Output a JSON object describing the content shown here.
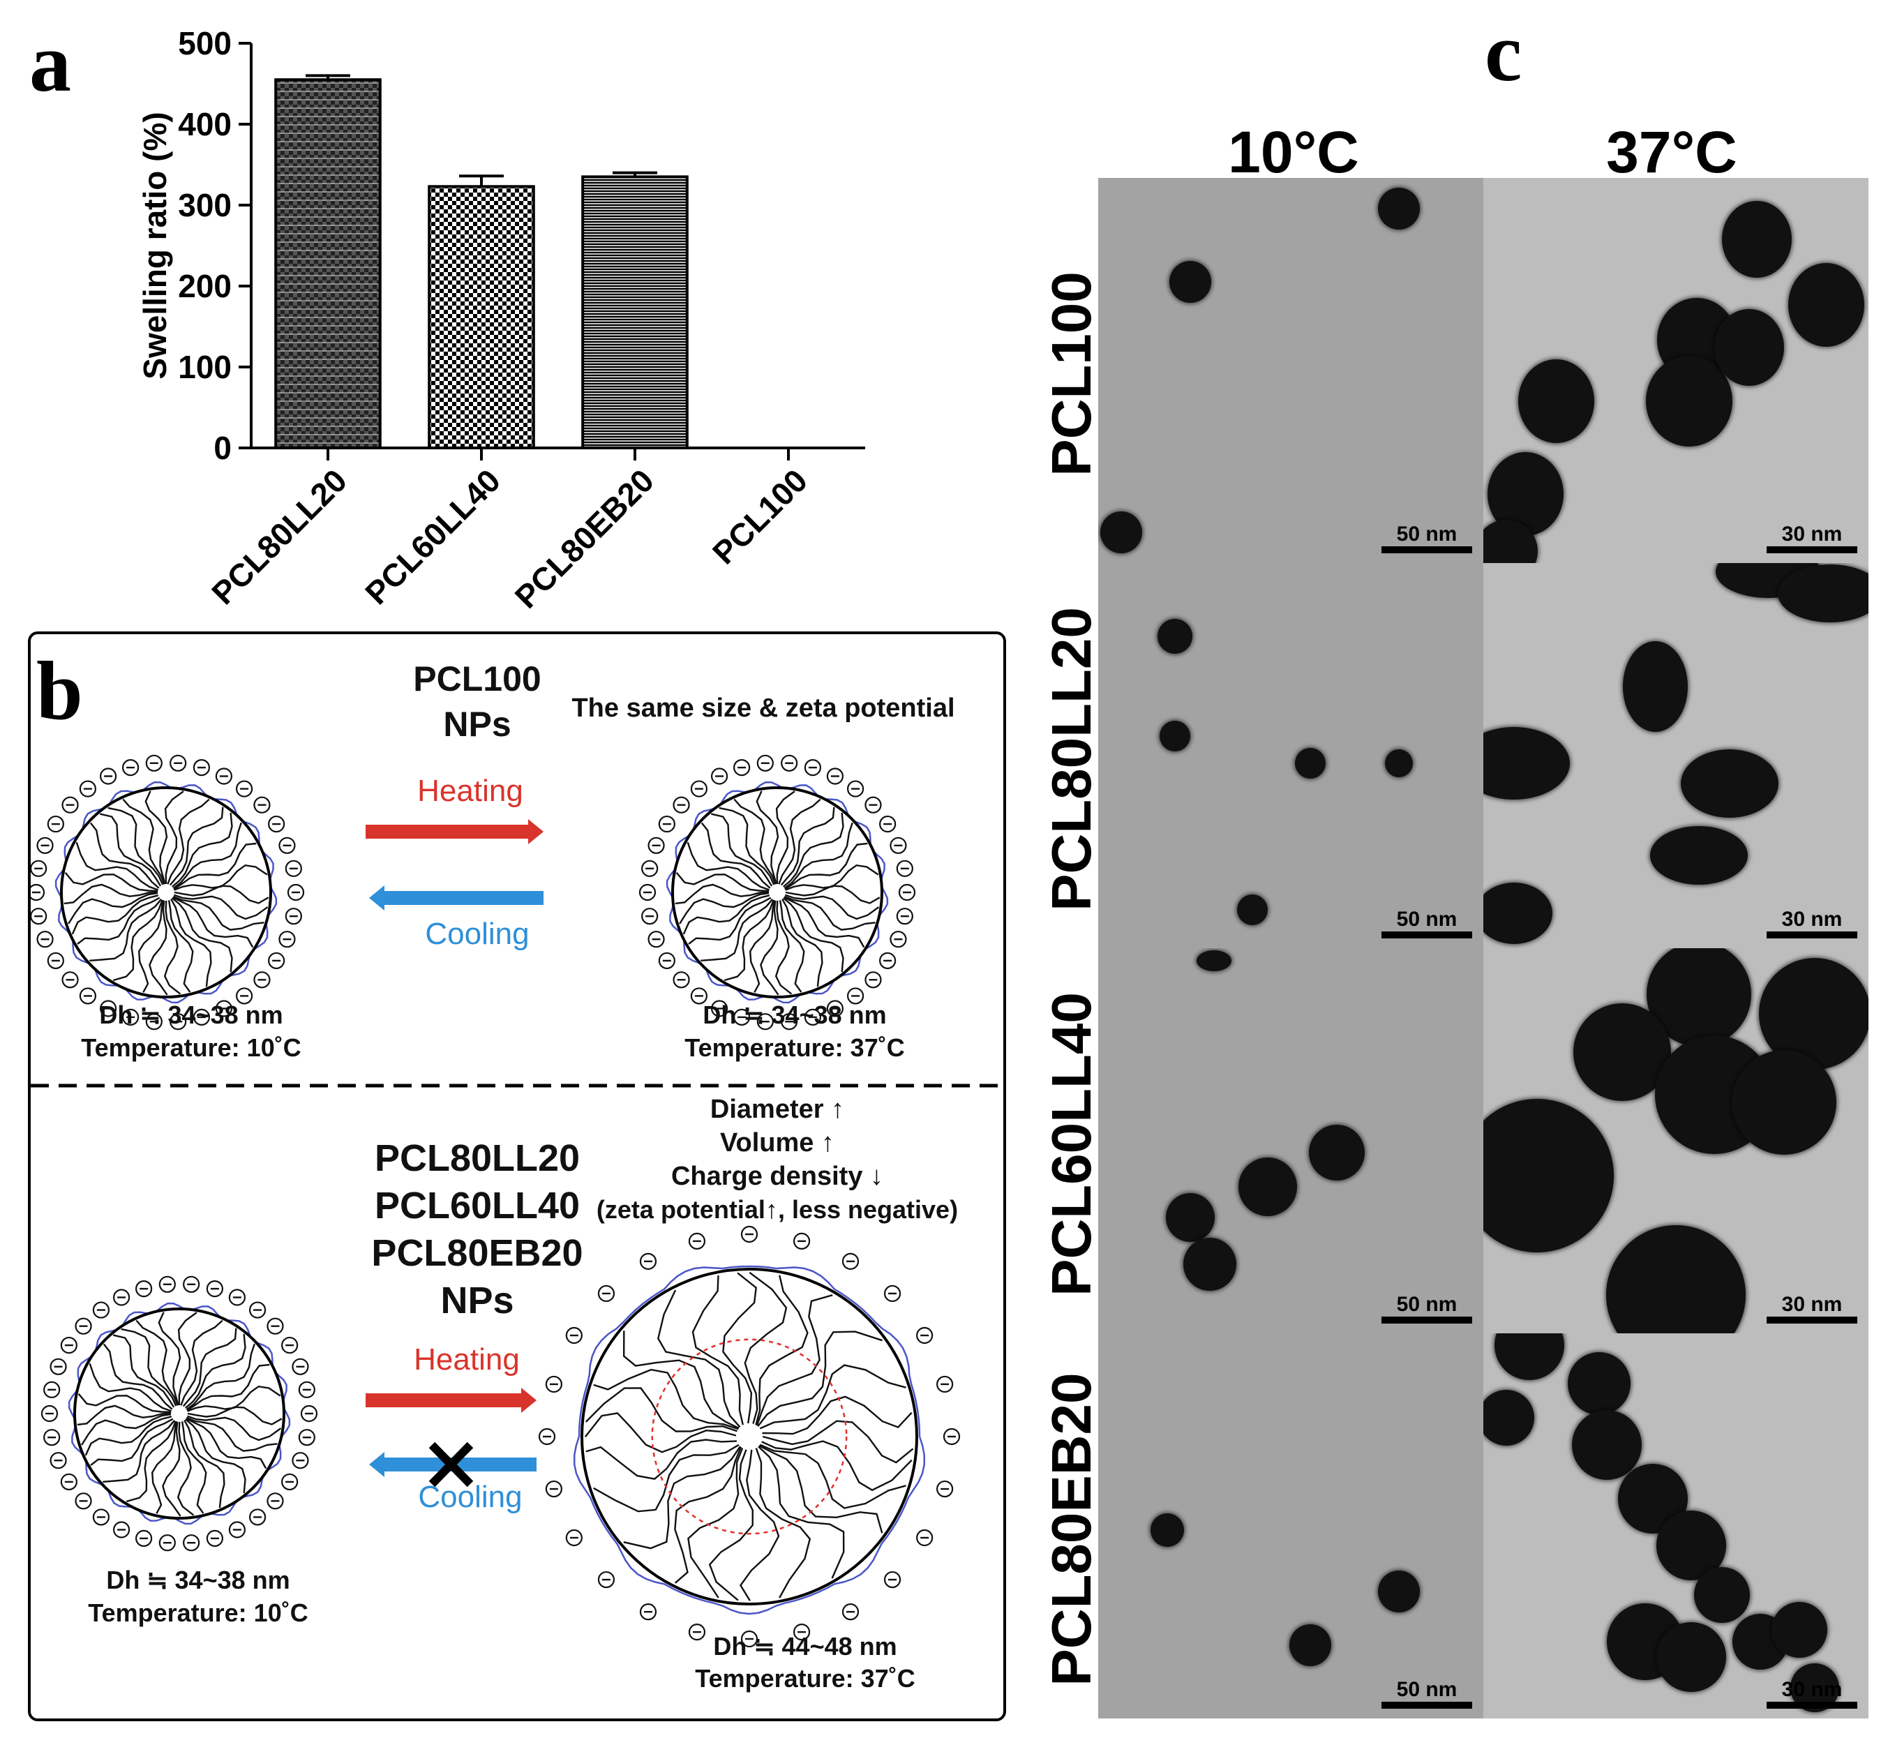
{
  "panel_a": {
    "letter": "a",
    "chart_data": {
      "type": "bar",
      "categories": [
        "PCL80LL20",
        "PCL60LL40",
        "PCL80EB20",
        "PCL100"
      ],
      "values": [
        455,
        323,
        335,
        0
      ],
      "errors": [
        5,
        13,
        5,
        0
      ],
      "ylabel": "Swelling ratio (%)",
      "xlabel": "",
      "ylim": [
        0,
        500
      ],
      "yticks": [
        0,
        100,
        200,
        300,
        400,
        500
      ],
      "patterns": [
        "horizontal-lines-dense",
        "checkerboard",
        "horizontal-lines",
        "none"
      ],
      "bar_color": "#000000",
      "grid": false
    }
  },
  "panel_b": {
    "letter": "b",
    "top": {
      "title_line1": "PCL100",
      "title_line2": "NPs",
      "note": "The same size & zeta potential",
      "heating": "Heating",
      "cooling": "Cooling",
      "left_size": "Dh ≒ 34~38 nm",
      "left_temp": "Temperature: 10˚C",
      "right_size": "Dh ≒ 34~38 nm",
      "right_temp": "Temperature: 37˚C"
    },
    "bottom": {
      "titles": [
        "PCL80LL20",
        "PCL60LL40",
        "PCL80EB20",
        "NPs"
      ],
      "changes": [
        "Diameter ↑",
        "Volume ↑",
        "Charge density ↓",
        "(zeta potential↑, less negative)"
      ],
      "heating": "Heating",
      "cooling": "Cooling",
      "left_size": "Dh ≒ 34~38 nm",
      "left_temp": "Temperature: 10˚C",
      "right_size": "Dh ≒ 44~48 nm",
      "right_temp": "Temperature: 37˚C"
    },
    "heating_color": "#d9342b",
    "cooling_color": "#2f8fd8"
  },
  "panel_c": {
    "letter": "c",
    "columns": [
      "10°C",
      "37°C"
    ],
    "rows": [
      "PCL100",
      "PCL80LL20",
      "PCL60LL40",
      "PCL80EB20"
    ],
    "scale_10": "50 nm",
    "scale_37": "30 nm"
  }
}
